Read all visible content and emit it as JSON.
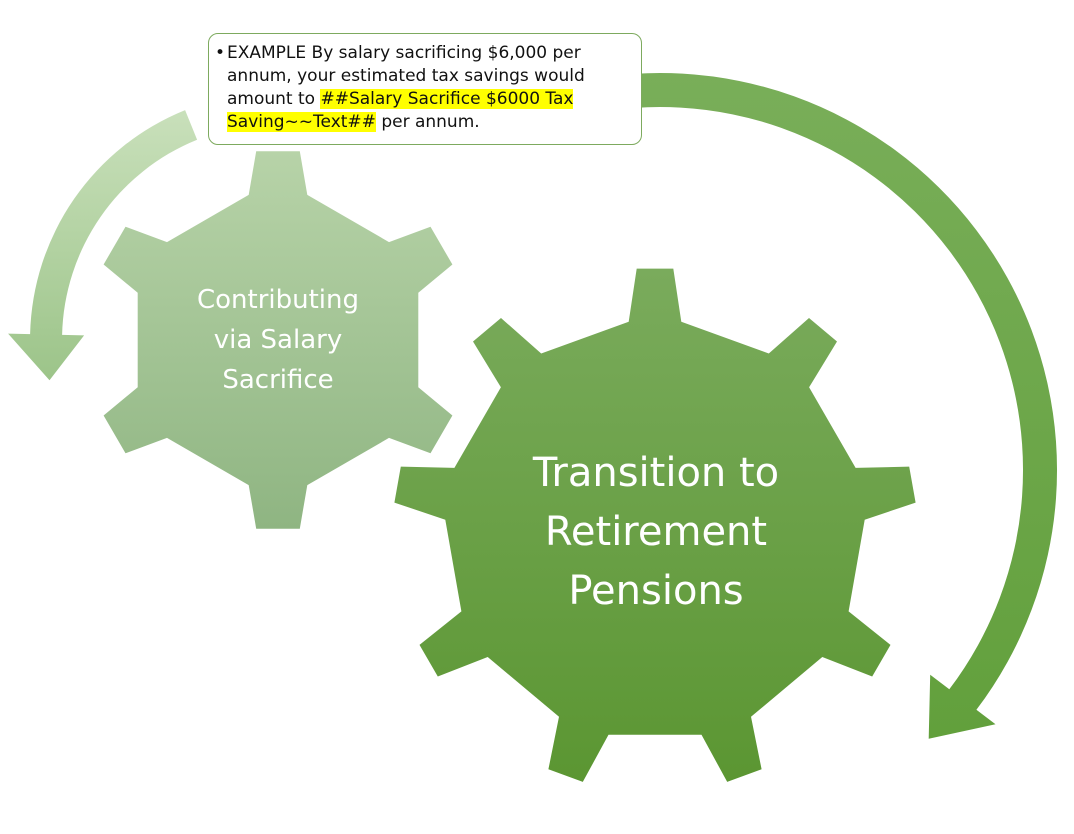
{
  "callout": {
    "bullet": "•",
    "text_before": "EXAMPLE By salary sacrificing $6,000 per annum, your estimated tax savings would amount to ",
    "highlight": "##Salary Sacrifice $6000 Tax Saving~~Text##",
    "text_after": " per annum."
  },
  "gears": {
    "small": {
      "label_lines": [
        "Contributing",
        "via Salary",
        "Sacrifice"
      ]
    },
    "large": {
      "label_lines": [
        "Transition to",
        "Retirement",
        "Pensions"
      ]
    }
  },
  "colors": {
    "small_gear_top": "#b7d3a8",
    "small_gear_bottom": "#8fb582",
    "large_gear_top": "#7aab5c",
    "large_gear_bottom": "#5b9632",
    "arrow_light": "#b9d6a8",
    "arrow_dark": "#6fa84e",
    "callout_border": "#7daa5e",
    "highlight": "#ffff00"
  }
}
